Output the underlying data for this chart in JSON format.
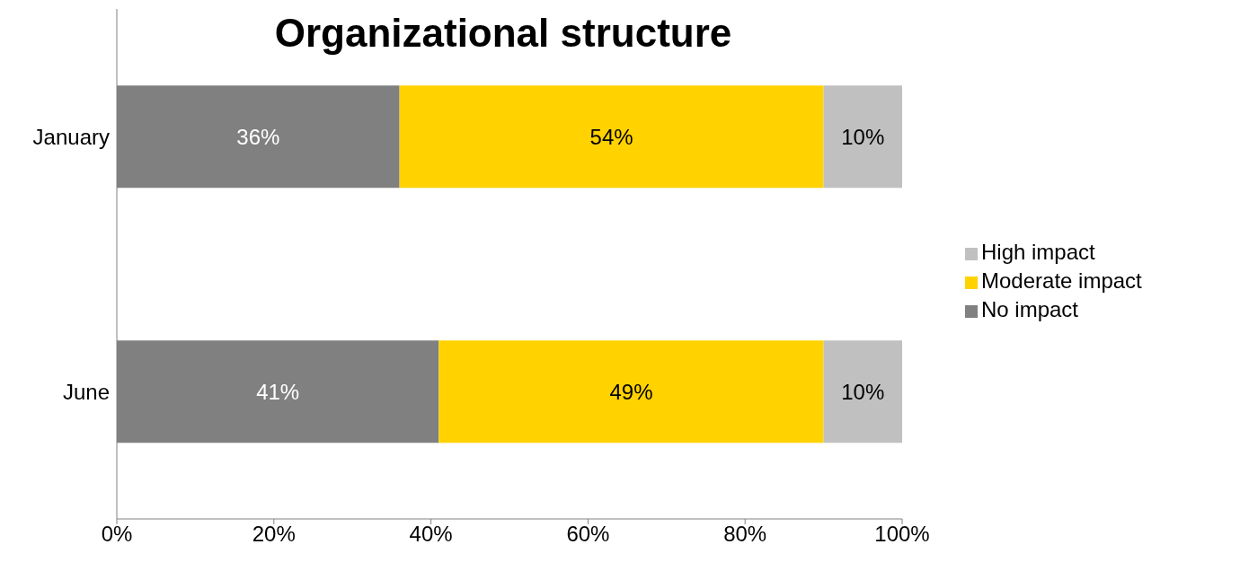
{
  "chart_data": {
    "type": "bar",
    "title": "Organizational structure",
    "orientation": "horizontal",
    "stacked": true,
    "categories": [
      "January",
      "June"
    ],
    "series": [
      {
        "name": "No impact",
        "color": "#808080",
        "values": [
          36,
          41
        ],
        "value_labels": [
          "36%",
          "41%"
        ]
      },
      {
        "name": "Moderate impact",
        "color": "#ffd200",
        "values": [
          54,
          49
        ],
        "value_labels": [
          "54%",
          "49%"
        ]
      },
      {
        "name": "High impact",
        "color": "#c0c0c0",
        "values": [
          10,
          10
        ],
        "value_labels": [
          "10%",
          "10%"
        ]
      }
    ],
    "xlim": [
      0,
      100
    ],
    "xticks": [
      {
        "value": 0,
        "label": "0%"
      },
      {
        "value": 20,
        "label": "20%"
      },
      {
        "value": 40,
        "label": "40%"
      },
      {
        "value": 60,
        "label": "60%"
      },
      {
        "value": 80,
        "label": "80%"
      },
      {
        "value": 100,
        "label": "100%"
      }
    ],
    "grid": false,
    "legend": "right"
  }
}
